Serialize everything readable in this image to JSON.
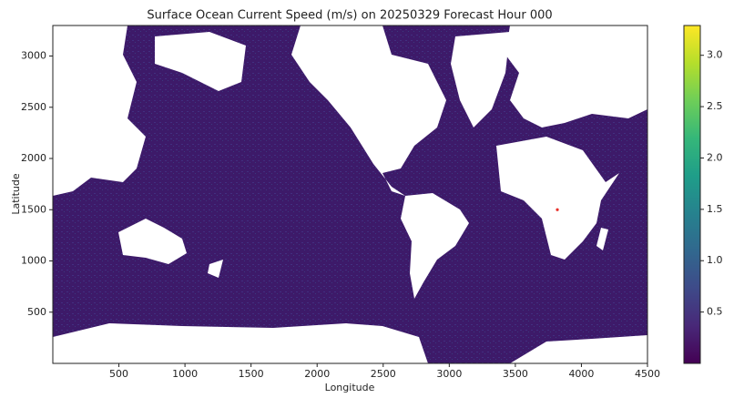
{
  "chart_data": {
    "type": "heatmap",
    "title": "Surface Ocean Current Speed (m/s) on 20250329 Forecast Hour 000",
    "x_label": "Longitude",
    "y_label": "Latitude",
    "xlim": [
      0,
      4500
    ],
    "ylim": [
      0,
      3298
    ],
    "xticks": [
      500,
      1000,
      1500,
      2000,
      2500,
      3000,
      3500,
      4000,
      4500
    ],
    "yticks": [
      500,
      1000,
      1500,
      2000,
      2500,
      3000
    ],
    "colormap": "viridis",
    "clim": [
      0,
      3.29
    ],
    "colorbar_ticks": [
      0.5,
      {
        "value": 1,
        "label": "1.0"
      },
      1.5,
      {
        "value": 2,
        "label": "2.0"
      },
      2.5,
      {
        "value": 3,
        "label": "3.0"
      }
    ],
    "points": {
      "x": [
        3818
      ],
      "y": [
        1500
      ],
      "color": "#e8302a"
    }
  }
}
